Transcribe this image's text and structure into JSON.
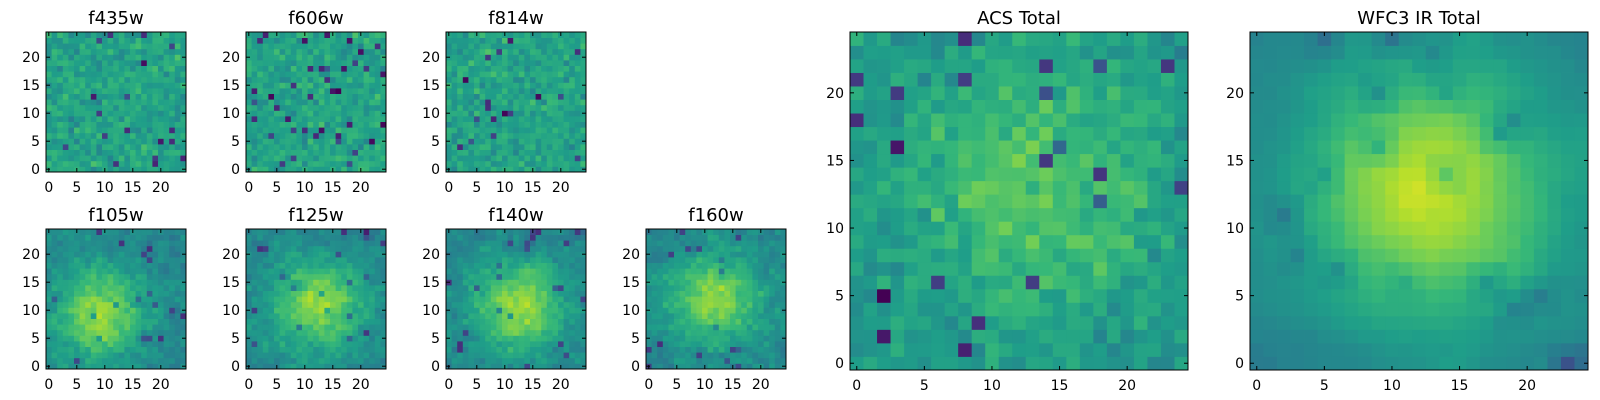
{
  "chart_data": [
    {
      "type": "heatmap",
      "title": "f435w",
      "xticks": [
        "0",
        "5",
        "10",
        "15",
        "20"
      ],
      "yticks": [
        "0",
        "5",
        "10",
        "15",
        "20"
      ],
      "ylim": [
        0,
        24
      ],
      "xlim": [
        0,
        24
      ],
      "colormap": "viridis",
      "seed": 11,
      "structure": "noise"
    },
    {
      "type": "heatmap",
      "title": "f606w",
      "xticks": [
        "0",
        "5",
        "10",
        "15",
        "20"
      ],
      "yticks": [
        "0",
        "5",
        "10",
        "15",
        "20"
      ],
      "ylim": [
        0,
        24
      ],
      "xlim": [
        0,
        24
      ],
      "colormap": "viridis",
      "seed": 23,
      "structure": "noise"
    },
    {
      "type": "heatmap",
      "title": "f814w",
      "xticks": [
        "0",
        "5",
        "10",
        "15",
        "20"
      ],
      "yticks": [
        "0",
        "5",
        "10",
        "15",
        "20"
      ],
      "ylim": [
        0,
        24
      ],
      "xlim": [
        0,
        24
      ],
      "colormap": "viridis",
      "seed": 37,
      "structure": "noise"
    },
    {
      "type": "heatmap",
      "title": "f105w",
      "xticks": [
        "0",
        "5",
        "10",
        "15",
        "20"
      ],
      "yticks": [
        "0",
        "5",
        "10",
        "15",
        "20"
      ],
      "ylim": [
        0,
        24
      ],
      "xlim": [
        0,
        24
      ],
      "colormap": "viridis",
      "seed": 41,
      "structure": "blob"
    },
    {
      "type": "heatmap",
      "title": "f125w",
      "xticks": [
        "0",
        "5",
        "10",
        "15",
        "20"
      ],
      "yticks": [
        "0",
        "5",
        "10",
        "15",
        "20"
      ],
      "ylim": [
        0,
        24
      ],
      "xlim": [
        0,
        24
      ],
      "colormap": "viridis",
      "seed": 53,
      "structure": "blob"
    },
    {
      "type": "heatmap",
      "title": "f140w",
      "xticks": [
        "0",
        "5",
        "10",
        "15",
        "20"
      ],
      "yticks": [
        "0",
        "5",
        "10",
        "15",
        "20"
      ],
      "ylim": [
        0,
        24
      ],
      "xlim": [
        0,
        24
      ],
      "colormap": "viridis",
      "seed": 67,
      "structure": "blob"
    },
    {
      "type": "heatmap",
      "title": "f160w",
      "xticks": [
        "0",
        "5",
        "10",
        "15",
        "20"
      ],
      "yticks": [
        "0",
        "5",
        "10",
        "15",
        "20"
      ],
      "ylim": [
        0,
        24
      ],
      "xlim": [
        0,
        24
      ],
      "colormap": "viridis",
      "seed": 79,
      "structure": "blob"
    },
    {
      "type": "heatmap",
      "title": "ACS Total",
      "xticks": [
        "0",
        "5",
        "10",
        "15",
        "20"
      ],
      "yticks": [
        "0",
        "5",
        "10",
        "15",
        "20"
      ],
      "ylim": [
        0,
        24
      ],
      "xlim": [
        0,
        24
      ],
      "colormap": "viridis",
      "seed": 83,
      "structure": "weakblob"
    },
    {
      "type": "heatmap",
      "title": "WFC3 IR Total",
      "xticks": [
        "0",
        "5",
        "10",
        "15",
        "20"
      ],
      "yticks": [
        "0",
        "5",
        "10",
        "15",
        "20"
      ],
      "ylim": [
        0,
        24
      ],
      "xlim": [
        0,
        24
      ],
      "colormap": "viridis",
      "seed": 97,
      "structure": "strongblob"
    }
  ],
  "colors": {
    "viridis_dark": "#440154",
    "viridis_mid": "#21918c",
    "viridis_bright": "#fde725",
    "axes_frame": "#000000",
    "background": "#ffffff"
  }
}
